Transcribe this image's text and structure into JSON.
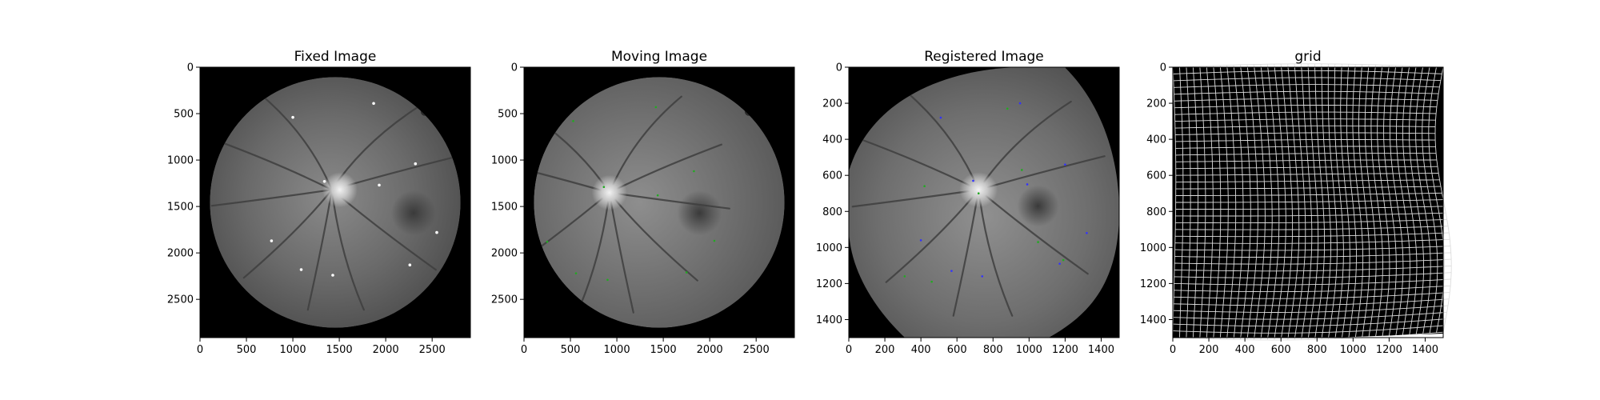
{
  "chart_data": [
    {
      "type": "image",
      "title": "Fixed Image",
      "xlim": [
        0,
        2912
      ],
      "ylim": [
        2912,
        0
      ],
      "xticks": [
        0,
        500,
        1000,
        1500,
        2000,
        2500
      ],
      "yticks": [
        0,
        500,
        1000,
        1500,
        2000,
        2500
      ],
      "image": "retina-fundus-fixed",
      "fundus": {
        "cx": 1456,
        "cy": 1456,
        "r": 1350,
        "disc": [
          1420,
          1320
        ]
      },
      "landmarks_color": "#ffffff",
      "landmarks": [
        [
          1000,
          540
        ],
        [
          1870,
          390
        ],
        [
          1340,
          1230
        ],
        [
          2320,
          1040
        ],
        [
          1930,
          1270
        ],
        [
          2550,
          1780
        ],
        [
          770,
          1870
        ],
        [
          1090,
          2180
        ],
        [
          1430,
          2240
        ],
        [
          2260,
          2130
        ]
      ]
    },
    {
      "type": "image",
      "title": "Moving Image",
      "xlim": [
        0,
        2912
      ],
      "ylim": [
        2912,
        0
      ],
      "xticks": [
        0,
        500,
        1000,
        1500,
        2000,
        2500
      ],
      "yticks": [
        0,
        500,
        1000,
        1500,
        2000,
        2500
      ],
      "image": "retina-fundus-moving",
      "fundus": {
        "cx": 1456,
        "cy": 1456,
        "r": 1350,
        "disc": [
          920,
          1350
        ]
      },
      "landmarks_color": "#22aa22",
      "landmarks": [
        [
          530,
          580
        ],
        [
          1420,
          430
        ],
        [
          860,
          1290
        ],
        [
          1440,
          1380
        ],
        [
          1830,
          1120
        ],
        [
          2050,
          1870
        ],
        [
          250,
          1880
        ],
        [
          560,
          2220
        ],
        [
          900,
          2290
        ],
        [
          1750,
          2210
        ]
      ]
    },
    {
      "type": "image",
      "title": "Registered Image",
      "xlim": [
        0,
        1500
      ],
      "ylim": [
        1500,
        0
      ],
      "xticks": [
        0,
        200,
        400,
        600,
        800,
        1000,
        1200,
        1400
      ],
      "yticks": [
        0,
        200,
        400,
        600,
        800,
        1000,
        1200,
        1400
      ],
      "image": "retina-fundus-registered",
      "fundus": {
        "disc": [
          720,
          680
        ]
      },
      "landmarks_color": "#3333ff",
      "landmarks": [
        [
          510,
          280
        ],
        [
          950,
          200
        ],
        [
          690,
          630
        ],
        [
          990,
          650
        ],
        [
          1200,
          540
        ],
        [
          1320,
          920
        ],
        [
          400,
          960
        ],
        [
          570,
          1130
        ],
        [
          740,
          1160
        ],
        [
          1170,
          1090
        ]
      ],
      "landmarks_b_color": "#22aa22",
      "landmarks_b": [
        [
          720,
          700
        ],
        [
          420,
          660
        ],
        [
          960,
          570
        ],
        [
          880,
          230
        ],
        [
          1050,
          970
        ],
        [
          460,
          1190
        ],
        [
          310,
          1160
        ],
        [
          1190,
          1070
        ]
      ]
    },
    {
      "type": "image",
      "title": "grid",
      "xlim": [
        0,
        1500
      ],
      "ylim": [
        1500,
        0
      ],
      "xticks": [
        0,
        200,
        400,
        600,
        800,
        1000,
        1200,
        1400
      ],
      "yticks": [
        0,
        200,
        400,
        600,
        800,
        1000,
        1200,
        1400
      ],
      "image": "deformation-grid",
      "grid_lines": 40
    }
  ]
}
